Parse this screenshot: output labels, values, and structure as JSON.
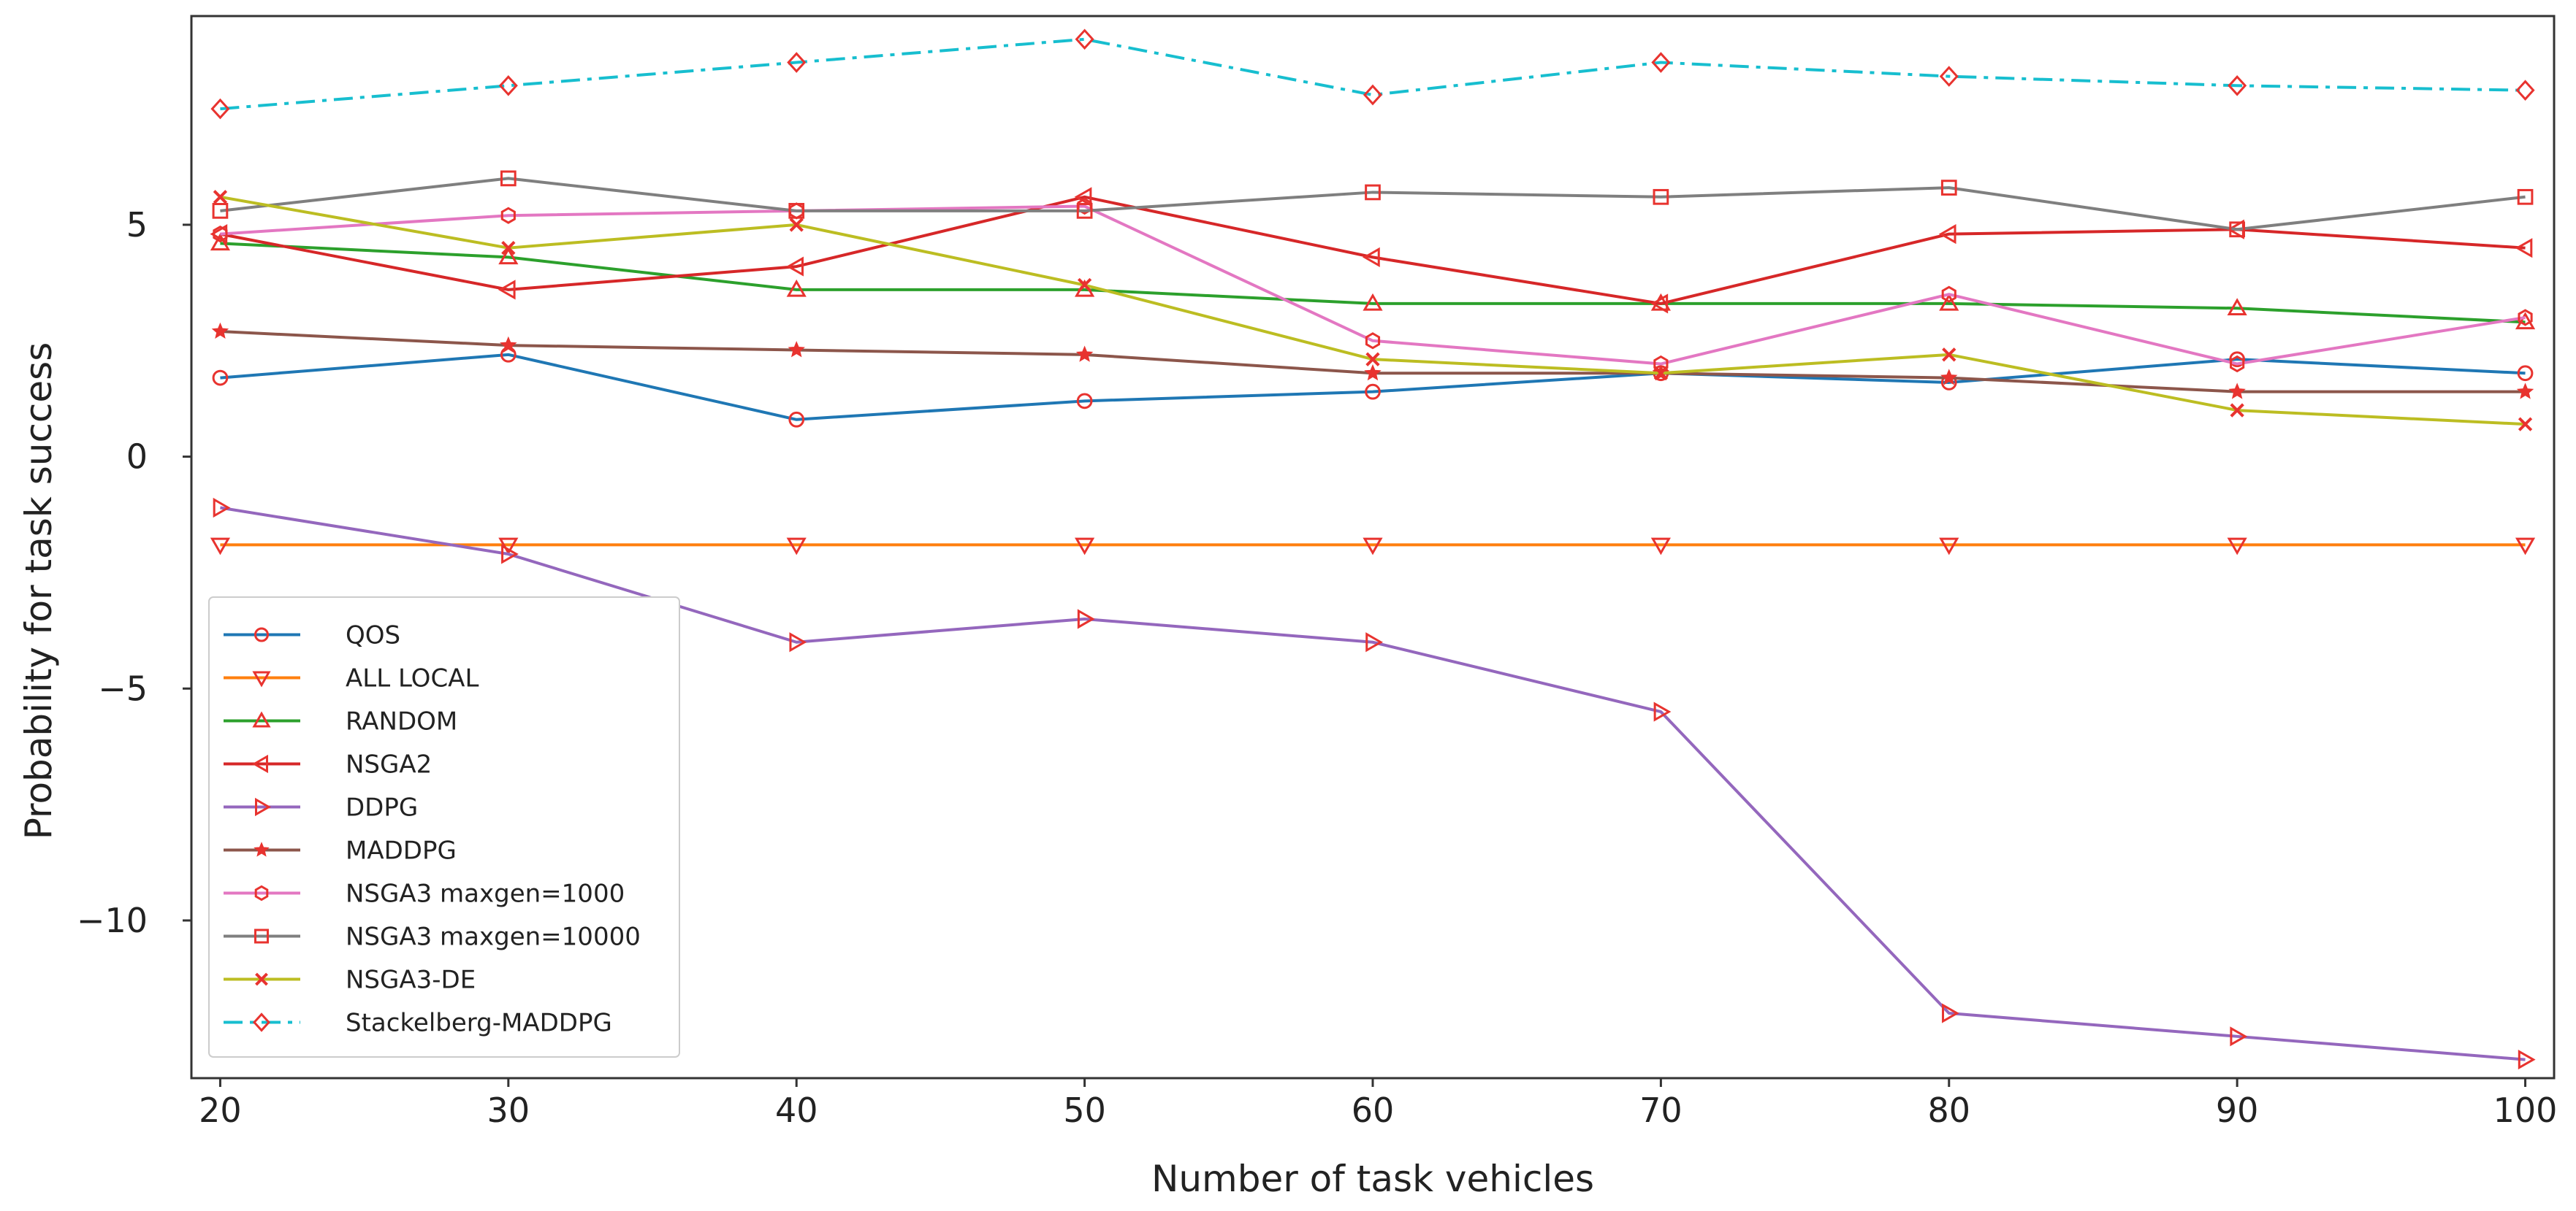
{
  "chart_data": {
    "type": "line",
    "title": "",
    "xlabel": "Number of task vehicles",
    "ylabel": "Probability for task success",
    "x": [
      20,
      30,
      40,
      50,
      60,
      70,
      80,
      90,
      100
    ],
    "xticks": [
      20,
      30,
      40,
      50,
      60,
      70,
      80,
      90,
      100
    ],
    "xtick_labels": [
      "20",
      "30",
      "40",
      "50",
      "60",
      "70",
      "80",
      "90",
      "100"
    ],
    "yticks": [
      5,
      0,
      -5,
      -10
    ],
    "ytick_labels": [
      "5",
      "0",
      "−5",
      "−10"
    ],
    "xlim": [
      19,
      101
    ],
    "ylim": [
      -13.4,
      9.5
    ],
    "grid": false,
    "legend_position": "lower-left",
    "series": [
      {
        "name": "QOS",
        "color": "#1f77b4",
        "line_style": "solid",
        "marker": "circle",
        "values": [
          1.7,
          2.2,
          0.8,
          1.2,
          1.4,
          1.8,
          1.6,
          2.1,
          1.8
        ]
      },
      {
        "name": "ALL LOCAL",
        "color": "#ff7f0e",
        "line_style": "solid",
        "marker": "triangle-down",
        "values": [
          -1.9,
          -1.9,
          -1.9,
          -1.9,
          -1.9,
          -1.9,
          -1.9,
          -1.9,
          -1.9
        ]
      },
      {
        "name": "RANDOM",
        "color": "#2ca02c",
        "line_style": "solid",
        "marker": "triangle-up",
        "values": [
          4.6,
          4.3,
          3.6,
          3.6,
          3.3,
          3.3,
          3.3,
          3.2,
          2.9
        ]
      },
      {
        "name": "NSGA2",
        "color": "#d62728",
        "line_style": "solid",
        "marker": "triangle-left",
        "values": [
          4.8,
          3.6,
          4.1,
          5.6,
          4.3,
          3.3,
          4.8,
          4.9,
          4.5
        ]
      },
      {
        "name": "DDPG",
        "color": "#9467bd",
        "line_style": "solid",
        "marker": "triangle-right",
        "values": [
          -1.1,
          -2.1,
          -4.0,
          -3.5,
          -4.0,
          -5.5,
          -12.0,
          -12.5,
          -13.0
        ]
      },
      {
        "name": "MADDPG",
        "color": "#8c564b",
        "line_style": "solid",
        "marker": "star",
        "values": [
          2.7,
          2.4,
          2.3,
          2.2,
          1.8,
          1.8,
          1.7,
          1.4,
          1.4
        ]
      },
      {
        "name": "NSGA3 maxgen=1000",
        "color": "#e377c2",
        "line_style": "solid",
        "marker": "hexagon",
        "values": [
          4.8,
          5.2,
          5.3,
          5.4,
          2.5,
          2.0,
          3.5,
          2.0,
          3.0
        ]
      },
      {
        "name": "NSGA3 maxgen=10000",
        "color": "#7f7f7f",
        "line_style": "solid",
        "marker": "square",
        "values": [
          5.3,
          6.0,
          5.3,
          5.3,
          5.7,
          5.6,
          5.8,
          4.9,
          5.6
        ]
      },
      {
        "name": "NSGA3-DE",
        "color": "#bcbd22",
        "line_style": "solid",
        "marker": "x",
        "values": [
          5.6,
          4.5,
          5.0,
          3.7,
          2.1,
          1.8,
          2.2,
          1.0,
          0.7
        ]
      },
      {
        "name": "Stackelberg-MADDPG",
        "color": "#17becf",
        "line_style": "dashdot",
        "marker": "diamond",
        "values": [
          7.5,
          8.0,
          8.5,
          9.0,
          7.8,
          8.5,
          8.2,
          8.0,
          7.9
        ]
      }
    ]
  }
}
